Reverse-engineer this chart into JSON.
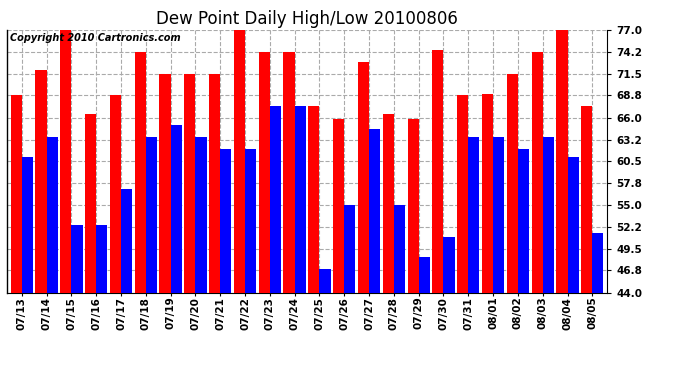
{
  "title": "Dew Point Daily High/Low 20100806",
  "copyright": "Copyright 2010 Cartronics.com",
  "dates": [
    "07/13",
    "07/14",
    "07/15",
    "07/16",
    "07/17",
    "07/18",
    "07/19",
    "07/20",
    "07/21",
    "07/22",
    "07/23",
    "07/24",
    "07/25",
    "07/26",
    "07/27",
    "07/28",
    "07/29",
    "07/30",
    "07/31",
    "08/01",
    "08/02",
    "08/03",
    "08/04",
    "08/05"
  ],
  "highs": [
    68.8,
    72.0,
    77.0,
    66.5,
    68.8,
    74.2,
    71.5,
    71.5,
    71.5,
    77.0,
    74.2,
    74.2,
    67.5,
    65.8,
    73.0,
    66.5,
    65.8,
    74.5,
    68.8,
    69.0,
    71.5,
    74.2,
    77.0,
    67.5
  ],
  "lows": [
    61.0,
    63.5,
    52.5,
    52.5,
    57.0,
    63.5,
    65.0,
    63.5,
    62.0,
    62.0,
    67.5,
    67.5,
    47.0,
    55.0,
    64.5,
    55.0,
    48.5,
    51.0,
    63.5,
    63.5,
    62.0,
    63.5,
    61.0,
    51.5
  ],
  "high_color": "#ff0000",
  "low_color": "#0000ff",
  "bg_color": "#ffffff",
  "plot_bg_color": "#ffffff",
  "grid_color": "#aaaaaa",
  "ymin": 44.0,
  "ymax": 77.0,
  "yticks": [
    44.0,
    46.8,
    49.5,
    52.2,
    55.0,
    57.8,
    60.5,
    63.2,
    66.0,
    68.8,
    71.5,
    74.2,
    77.0
  ],
  "title_fontsize": 12,
  "tick_fontsize": 7.5,
  "copyright_fontsize": 7
}
